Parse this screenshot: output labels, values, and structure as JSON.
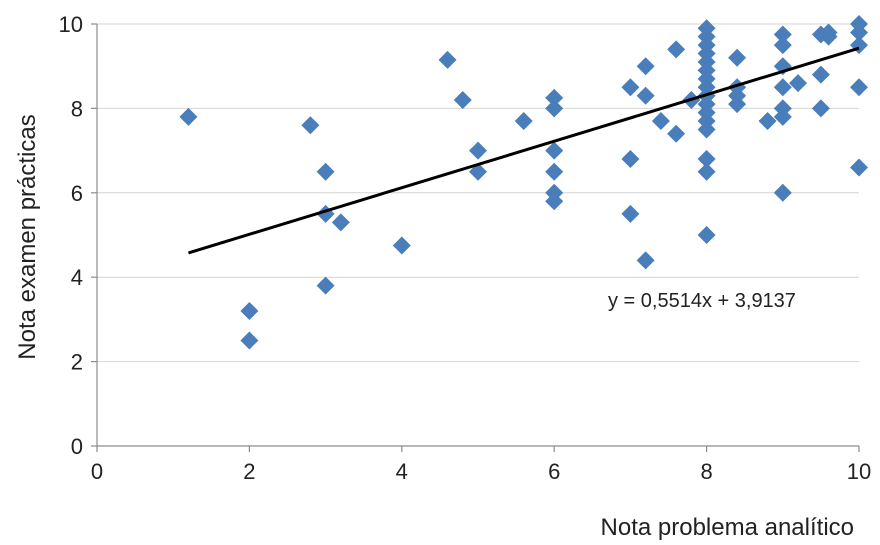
{
  "chart_data": {
    "type": "scatter",
    "xlabel": "Nota problema  analítico",
    "ylabel": "Nota examen prácticas",
    "xlim": [
      0,
      10
    ],
    "ylim": [
      0,
      10
    ],
    "x_ticks": [
      "0",
      "2",
      "4",
      "6",
      "8",
      "10"
    ],
    "y_ticks": [
      "0",
      "2",
      "4",
      "6",
      "8",
      "10"
    ],
    "grid": "horizontal",
    "marker": "diamond",
    "marker_color": "#4A7EBB",
    "trendline": {
      "slope": 0.5514,
      "intercept": 3.9137,
      "x_range": [
        1.2,
        10
      ],
      "label": "y = 0,5514x + 3,9137",
      "color": "#000000"
    },
    "points": [
      [
        1.2,
        7.8
      ],
      [
        2,
        3.2
      ],
      [
        2,
        2.5
      ],
      [
        2.8,
        7.6
      ],
      [
        3,
        6.5
      ],
      [
        3,
        5.5
      ],
      [
        3,
        3.8
      ],
      [
        3.2,
        5.3
      ],
      [
        4,
        4.75
      ],
      [
        4.6,
        9.15
      ],
      [
        4.8,
        8.2
      ],
      [
        5,
        7.0
      ],
      [
        5,
        6.5
      ],
      [
        5.6,
        7.7
      ],
      [
        6,
        8.25
      ],
      [
        6,
        8.0
      ],
      [
        6,
        7.0
      ],
      [
        6,
        6.5
      ],
      [
        6,
        6.0
      ],
      [
        6,
        5.8
      ],
      [
        7,
        8.5
      ],
      [
        7,
        6.8
      ],
      [
        7,
        5.5
      ],
      [
        7.2,
        9.0
      ],
      [
        7.2,
        8.3
      ],
      [
        7.2,
        4.4
      ],
      [
        7.4,
        7.7
      ],
      [
        7.6,
        9.4
      ],
      [
        7.6,
        7.4
      ],
      [
        7.8,
        8.2
      ],
      [
        8,
        9.9
      ],
      [
        8,
        9.7
      ],
      [
        8,
        9.5
      ],
      [
        8,
        9.3
      ],
      [
        8,
        9.1
      ],
      [
        8,
        8.9
      ],
      [
        8,
        8.7
      ],
      [
        8,
        8.5
      ],
      [
        8,
        8.3
      ],
      [
        8,
        8.1
      ],
      [
        8,
        7.9
      ],
      [
        8,
        7.7
      ],
      [
        8,
        7.5
      ],
      [
        8,
        6.8
      ],
      [
        8,
        6.5
      ],
      [
        8,
        5.0
      ],
      [
        8.4,
        9.2
      ],
      [
        8.4,
        8.5
      ],
      [
        8.4,
        8.3
      ],
      [
        8.4,
        8.1
      ],
      [
        8.8,
        7.7
      ],
      [
        9,
        9.75
      ],
      [
        9,
        9.5
      ],
      [
        9,
        9.0
      ],
      [
        9,
        8.5
      ],
      [
        9,
        8.0
      ],
      [
        9,
        7.8
      ],
      [
        9,
        6.0
      ],
      [
        9.2,
        8.6
      ],
      [
        9.5,
        9.75
      ],
      [
        9.5,
        8.8
      ],
      [
        9.5,
        8.0
      ],
      [
        9.6,
        9.8
      ],
      [
        9.6,
        9.7
      ],
      [
        10,
        10.0
      ],
      [
        10,
        9.8
      ],
      [
        10,
        9.5
      ],
      [
        10,
        8.5
      ],
      [
        10,
        6.6
      ]
    ]
  }
}
